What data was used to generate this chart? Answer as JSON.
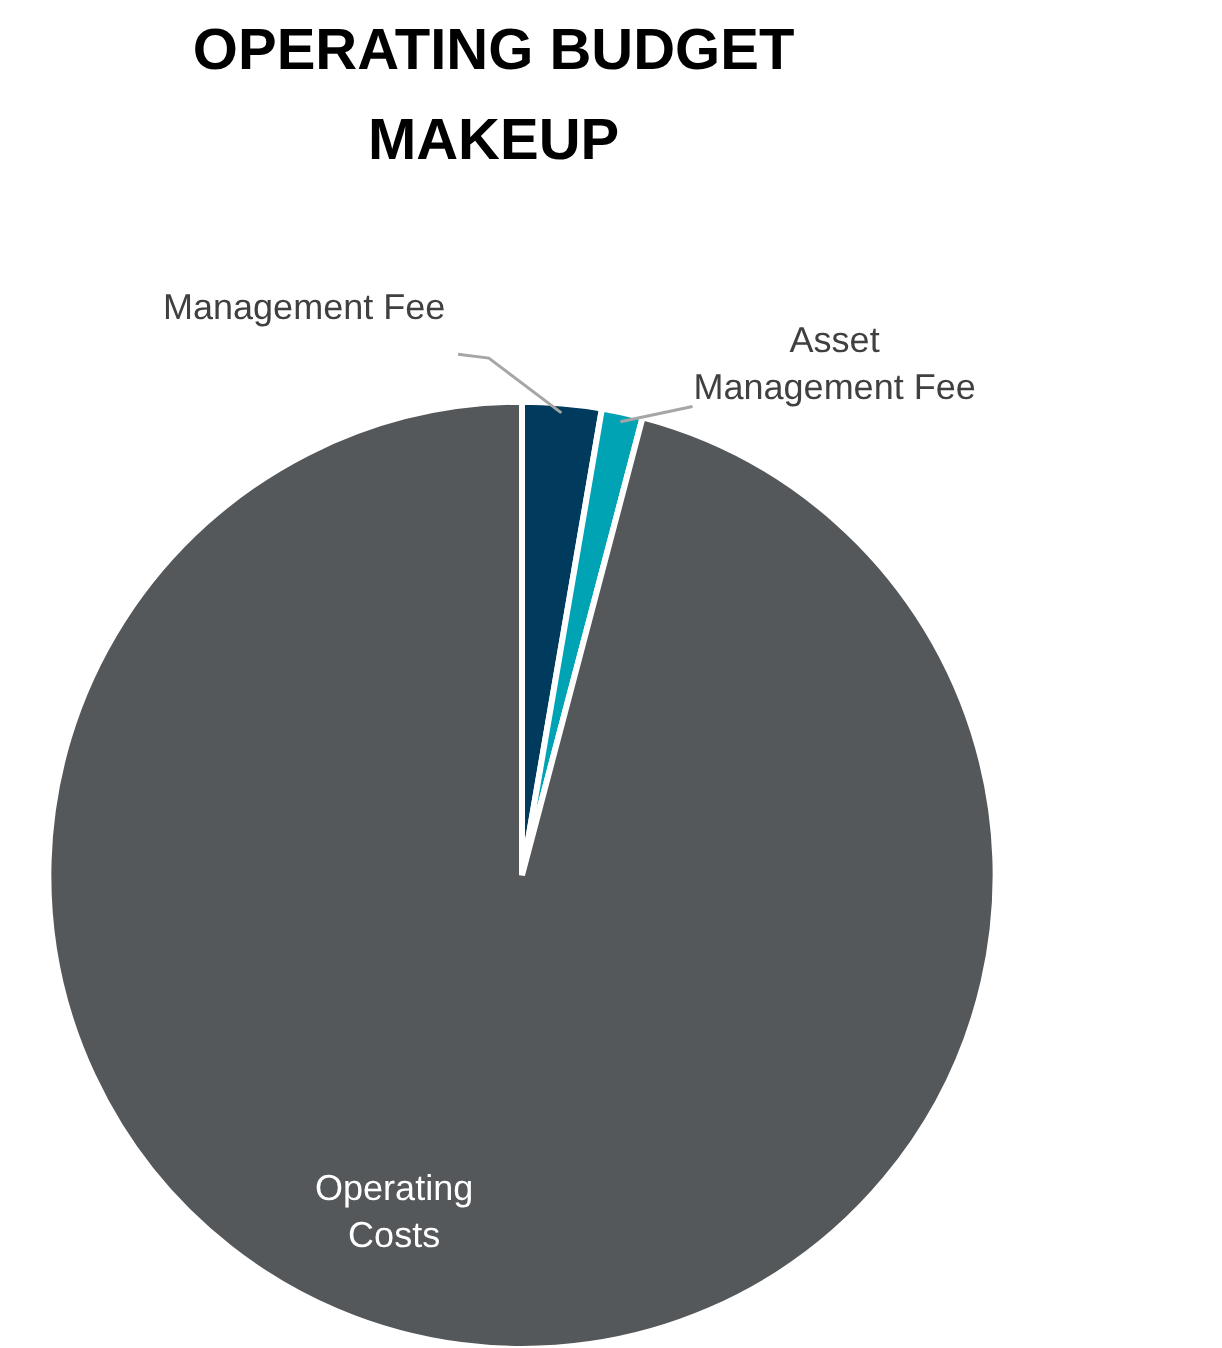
{
  "chart_data": {
    "type": "pie",
    "title": "OPERATING BUDGET MAKEUP",
    "categories": [
      "Management Fee",
      "Asset Management Fee",
      "Operating Costs"
    ],
    "values": [
      2.7,
      1.4,
      95.9
    ],
    "colors": [
      "#003a5d",
      "#00a3b4",
      "#55585b"
    ]
  }
}
